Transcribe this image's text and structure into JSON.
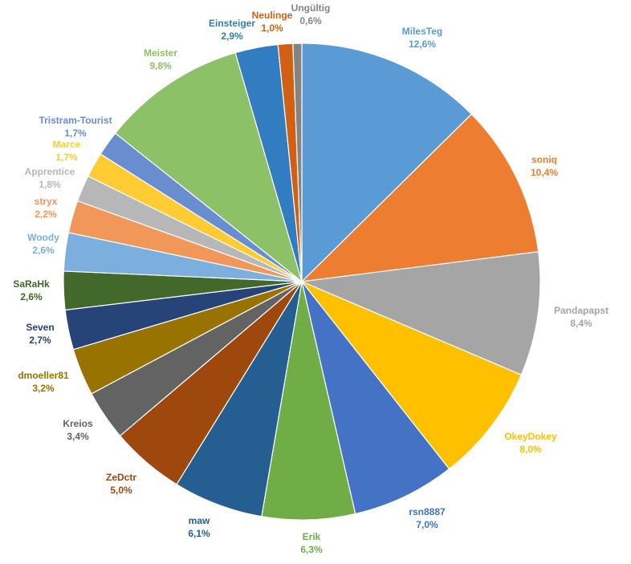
{
  "chart_data": {
    "type": "pie",
    "title": "",
    "slices": [
      {
        "name": "MilesTeg",
        "value": 12.6,
        "label": "12,6%",
        "color": "#5b9bd5"
      },
      {
        "name": "soniq",
        "value": 10.4,
        "label": "10,4%",
        "color": "#ed7d31"
      },
      {
        "name": "Pandapapst",
        "value": 8.4,
        "label": "8,4%",
        "color": "#a5a5a5"
      },
      {
        "name": "OkeyDokey",
        "value": 8.0,
        "label": "8,0%",
        "color": "#ffc000"
      },
      {
        "name": "rsn8887",
        "value": 7.0,
        "label": "7,0%",
        "color": "#4472c4"
      },
      {
        "name": "Erik",
        "value": 6.3,
        "label": "6,3%",
        "color": "#70ad47"
      },
      {
        "name": "maw",
        "value": 6.1,
        "label": "6,1%",
        "color": "#255e91"
      },
      {
        "name": "ZeDctr",
        "value": 5.0,
        "label": "5,0%",
        "color": "#9e480e"
      },
      {
        "name": "Kreios",
        "value": 3.4,
        "label": "3,4%",
        "color": "#636363"
      },
      {
        "name": "dmoeller81",
        "value": 3.2,
        "label": "3,2%",
        "color": "#997300"
      },
      {
        "name": "Seven",
        "value": 2.7,
        "label": "2,7%",
        "color": "#264478"
      },
      {
        "name": "SaRaHk",
        "value": 2.6,
        "label": "2,6%",
        "color": "#43682b"
      },
      {
        "name": "Woody",
        "value": 2.6,
        "label": "2,6%",
        "color": "#7cafdd"
      },
      {
        "name": "stryx",
        "value": 2.2,
        "label": "2,2%",
        "color": "#f1975a"
      },
      {
        "name": "Apprentice",
        "value": 1.8,
        "label": "1,8%",
        "color": "#b7b7b7"
      },
      {
        "name": "Marce",
        "value": 1.7,
        "label": "1,7%",
        "color": "#ffcd33"
      },
      {
        "name": "Tristram-Tourist",
        "value": 1.7,
        "label": "1,7%",
        "color": "#698ed0"
      },
      {
        "name": "Meister",
        "value": 9.8,
        "label": "9,8%",
        "color": "#8cc168"
      },
      {
        "name": "Einsteiger",
        "value": 2.9,
        "label": "2,9%",
        "color": "#327dc2"
      },
      {
        "name": "Neulinge",
        "value": 1.0,
        "label": "1,0%",
        "color": "#d26012"
      },
      {
        "name": "Ungültig",
        "value": 0.6,
        "label": "0,6%",
        "color": "#848484"
      }
    ]
  }
}
